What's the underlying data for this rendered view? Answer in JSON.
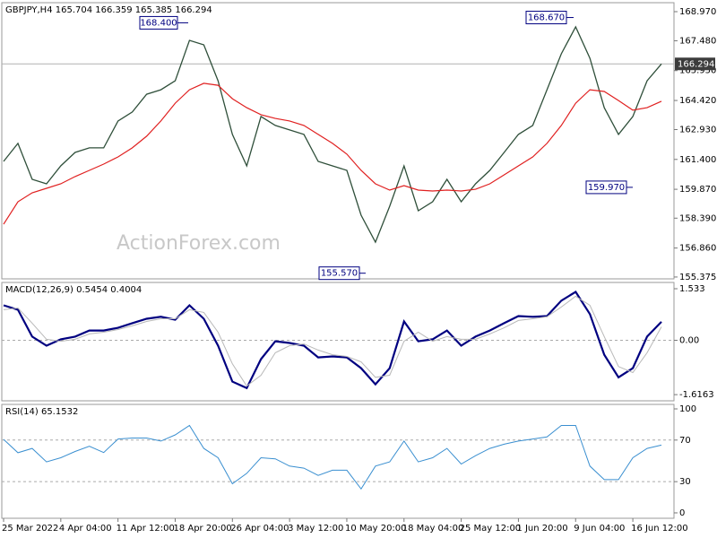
{
  "chart_data": [
    {
      "type": "line",
      "title": "GBPJPY,H4 165.704 166.359 165.385 166.294",
      "watermark": "ActionForex.com",
      "ylim": [
        155.28,
        169.43
      ],
      "yticks": [
        {
          "value": 168.97,
          "label": "168.970"
        },
        {
          "value": 167.48,
          "label": "167.480"
        },
        {
          "value": 165.95,
          "label": "165.950"
        },
        {
          "value": 164.42,
          "label": "164.420"
        },
        {
          "value": 162.93,
          "label": "162.930"
        },
        {
          "value": 161.4,
          "label": "161.400"
        },
        {
          "value": 159.87,
          "label": "159.870"
        },
        {
          "value": 158.39,
          "label": "158.390"
        },
        {
          "value": 156.86,
          "label": "156.860"
        },
        155.375
      ],
      "grid": false,
      "last_price": 166.294,
      "annotations": [
        {
          "value": 168.4,
          "label": "168.400"
        },
        {
          "value": 168.67,
          "label": "168.670"
        },
        {
          "value": 155.57,
          "label": "155.570"
        },
        {
          "value": 159.97,
          "label": "159.970"
        }
      ],
      "series": [
        {
          "name": "GBPJPY",
          "color": "#2f4f3a",
          "width": 1.3,
          "values": [
            161.3,
            162.22,
            160.38,
            160.15,
            161.07,
            161.76,
            161.99,
            161.99,
            163.37,
            163.83,
            164.74,
            164.97,
            165.43,
            167.5,
            167.27,
            165.43,
            162.68,
            161.07,
            163.6,
            163.14,
            162.91,
            162.68,
            161.3,
            161.07,
            160.84,
            158.54,
            157.16,
            159.0,
            161.07,
            158.77,
            159.23,
            160.38,
            159.23,
            160.15,
            160.84,
            161.76,
            162.68,
            163.14,
            164.97,
            166.81,
            168.19,
            166.58,
            164.05,
            162.68,
            163.6,
            165.43,
            166.29
          ]
        },
        {
          "name": "MA",
          "color": "#e02020",
          "width": 1.2,
          "values": [
            158.08,
            159.23,
            159.69,
            159.92,
            160.15,
            160.52,
            160.84,
            161.16,
            161.53,
            161.99,
            162.59,
            163.37,
            164.28,
            164.97,
            165.3,
            165.2,
            164.51,
            164.05,
            163.69,
            163.5,
            163.37,
            163.14,
            162.68,
            162.22,
            161.67,
            160.84,
            160.15,
            159.83,
            160.06,
            159.83,
            159.78,
            159.83,
            159.78,
            159.87,
            160.15,
            160.61,
            161.07,
            161.53,
            162.22,
            163.14,
            164.28,
            164.97,
            164.88,
            164.42,
            163.92,
            164.05,
            164.38
          ]
        }
      ]
    },
    {
      "type": "line",
      "title": "MACD(12,26,9) 0.5454 0.4004",
      "ylim": [
        -1.8,
        1.72
      ],
      "yticks": [
        1.533,
        {
          "value": 0,
          "label": "0.00"
        },
        -1.6163
      ],
      "grid": true,
      "series": [
        {
          "name": "MACD",
          "color": "#000080",
          "width": 2.2,
          "values": [
            1.04,
            0.91,
            0.11,
            -0.16,
            0.03,
            0.11,
            0.29,
            0.29,
            0.37,
            0.51,
            0.64,
            0.7,
            0.61,
            1.04,
            0.64,
            -0.16,
            -1.23,
            -1.42,
            -0.56,
            -0.03,
            -0.08,
            -0.16,
            -0.51,
            -0.48,
            -0.51,
            -0.83,
            -1.31,
            -0.83,
            0.56,
            -0.03,
            0.03,
            0.29,
            -0.16,
            0.11,
            0.29,
            0.51,
            0.72,
            0.7,
            0.72,
            1.18,
            1.44,
            0.78,
            -0.43,
            -1.1,
            -0.83,
            0.11,
            0.55
          ]
        },
        {
          "name": "Signal",
          "color": "#b8b8b8",
          "width": 1,
          "values": [
            0.91,
            0.96,
            0.51,
            0.03,
            -0.03,
            0.03,
            0.19,
            0.24,
            0.32,
            0.43,
            0.56,
            0.64,
            0.64,
            0.91,
            0.83,
            0.24,
            -0.7,
            -1.36,
            -1.04,
            -0.37,
            -0.16,
            -0.11,
            -0.29,
            -0.43,
            -0.48,
            -0.64,
            -1.1,
            -1.04,
            -0.03,
            0.24,
            -0.03,
            0.11,
            0.03,
            0.03,
            0.19,
            0.37,
            0.59,
            0.64,
            0.7,
            0.99,
            1.31,
            1.04,
            0.11,
            -0.78,
            -0.96,
            -0.37,
            0.4
          ]
        }
      ]
    },
    {
      "type": "line",
      "title": "RSI(14) 65.1532",
      "ylim": [
        -5.2,
        104.3
      ],
      "yticks": [
        100,
        70,
        30,
        0
      ],
      "grid": true,
      "categories": [
        "25 Mar 2022",
        null,
        null,
        null,
        "4 Apr 04:00",
        null,
        null,
        null,
        "11 Apr 12:00",
        null,
        null,
        null,
        "18 Apr 20:00",
        null,
        null,
        null,
        "26 Apr 04:00",
        null,
        null,
        null,
        "3 May 12:00",
        null,
        null,
        null,
        "10 May 20:00",
        null,
        null,
        null,
        "18 May 04:00",
        null,
        null,
        null,
        "25 May 12:00",
        null,
        null,
        null,
        "1 Jun 20:00",
        null,
        null,
        null,
        "9 Jun 04:00",
        null,
        null,
        null,
        "16 Jun 12:00",
        null,
        null
      ],
      "series": [
        {
          "name": "RSI",
          "color": "#3a8fd0",
          "width": 1,
          "values": [
            70.7,
            57.8,
            62,
            49,
            53,
            59,
            64,
            58,
            71,
            72,
            72,
            69,
            75,
            84,
            62,
            53,
            28,
            38,
            53,
            52,
            45,
            43,
            36,
            41,
            41,
            23,
            45,
            49,
            69,
            49,
            53,
            62,
            47,
            55,
            62,
            66,
            69,
            71,
            73,
            84,
            84,
            45,
            32,
            32,
            53,
            62,
            65.15
          ]
        }
      ]
    }
  ]
}
